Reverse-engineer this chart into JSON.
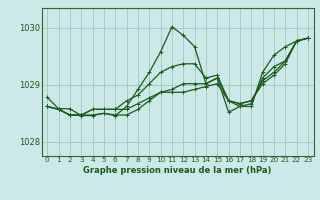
{
  "title": "Graphe pression niveau de la mer (hPa)",
  "bg_color": "#cce8e8",
  "grid_color": "#99ccbb",
  "line_color": "#1a5c1a",
  "spine_color": "#336633",
  "xlim": [
    -0.5,
    23.5
  ],
  "ylim": [
    1027.75,
    1030.35
  ],
  "yticks": [
    1028,
    1029,
    1030
  ],
  "xticks": [
    0,
    1,
    2,
    3,
    4,
    5,
    6,
    7,
    8,
    9,
    10,
    11,
    12,
    13,
    14,
    15,
    16,
    17,
    18,
    19,
    20,
    21,
    22,
    23
  ],
  "series": [
    [
      1028.78,
      1028.58,
      1028.58,
      1028.46,
      1028.46,
      1028.5,
      1028.46,
      1028.62,
      1028.92,
      1029.22,
      1029.58,
      1030.02,
      1029.87,
      1029.67,
      1029.02,
      1029.12,
      1028.52,
      1028.62,
      1028.62,
      1029.22,
      1029.52,
      1029.67,
      1029.77,
      1029.82
    ],
    [
      1028.62,
      1028.57,
      1028.47,
      1028.47,
      1028.47,
      1028.5,
      1028.47,
      1028.47,
      1028.57,
      1028.72,
      1028.87,
      1028.87,
      1028.87,
      1028.92,
      1028.97,
      1029.02,
      1028.72,
      1028.67,
      1028.72,
      1029.02,
      1029.17,
      1029.37,
      1029.77,
      1029.82
    ],
    [
      1028.62,
      1028.57,
      1028.47,
      1028.47,
      1028.57,
      1028.57,
      1028.57,
      1028.57,
      1028.67,
      1028.77,
      1028.87,
      1028.92,
      1029.02,
      1029.02,
      1029.02,
      1029.12,
      1028.72,
      1028.67,
      1028.72,
      1029.07,
      1029.22,
      1029.42,
      1029.77,
      1029.82
    ],
    [
      1028.62,
      1028.57,
      1028.47,
      1028.47,
      1028.57,
      1028.57,
      1028.57,
      1028.72,
      1028.82,
      1029.02,
      1029.22,
      1029.32,
      1029.37,
      1029.37,
      1029.12,
      1029.17,
      1028.72,
      1028.62,
      1028.67,
      1029.12,
      1029.32,
      1029.42,
      1029.77,
      1029.82
    ]
  ]
}
